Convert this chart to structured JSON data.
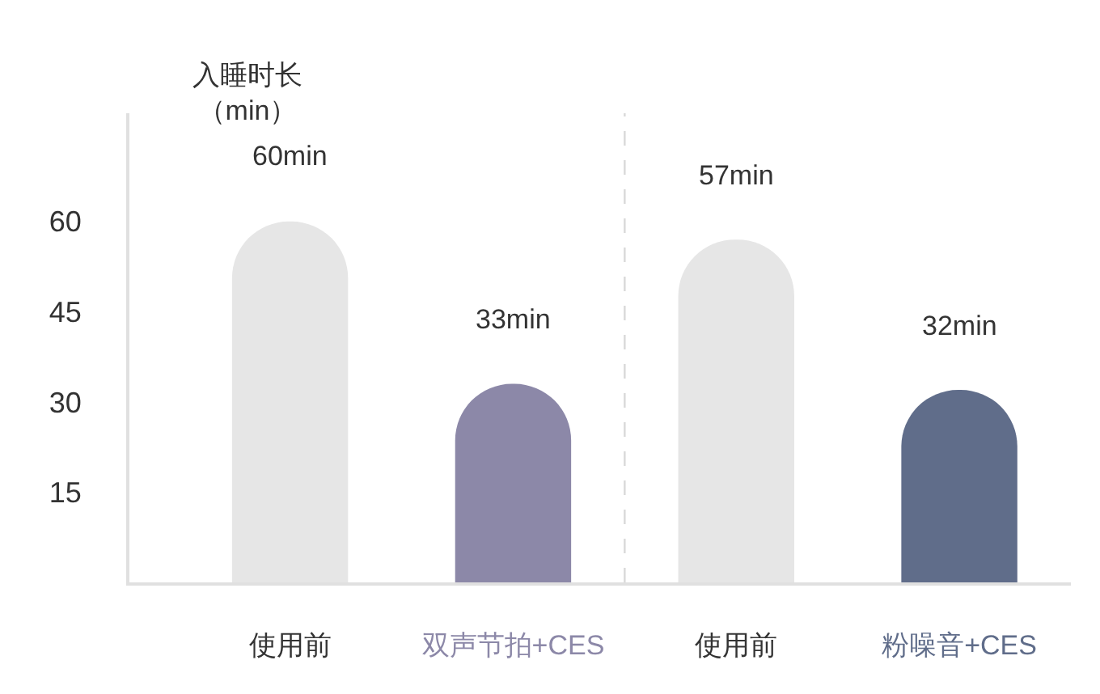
{
  "chart_data": {
    "type": "bar",
    "ylabel": "入睡时长（min）",
    "categories": [
      "使用前",
      "双声节拍+CES",
      "使用前",
      "粉噪音+CES"
    ],
    "values": [
      60,
      33,
      57,
      32
    ],
    "colors": [
      "#e6e6e6",
      "#8c88a8",
      "#e6e6e6",
      "#606d8a"
    ],
    "value_labels": [
      "60min",
      "33min",
      "57min",
      "32min"
    ],
    "ylim": [
      0,
      78
    ],
    "yticks": [
      15,
      30,
      45,
      60
    ]
  }
}
